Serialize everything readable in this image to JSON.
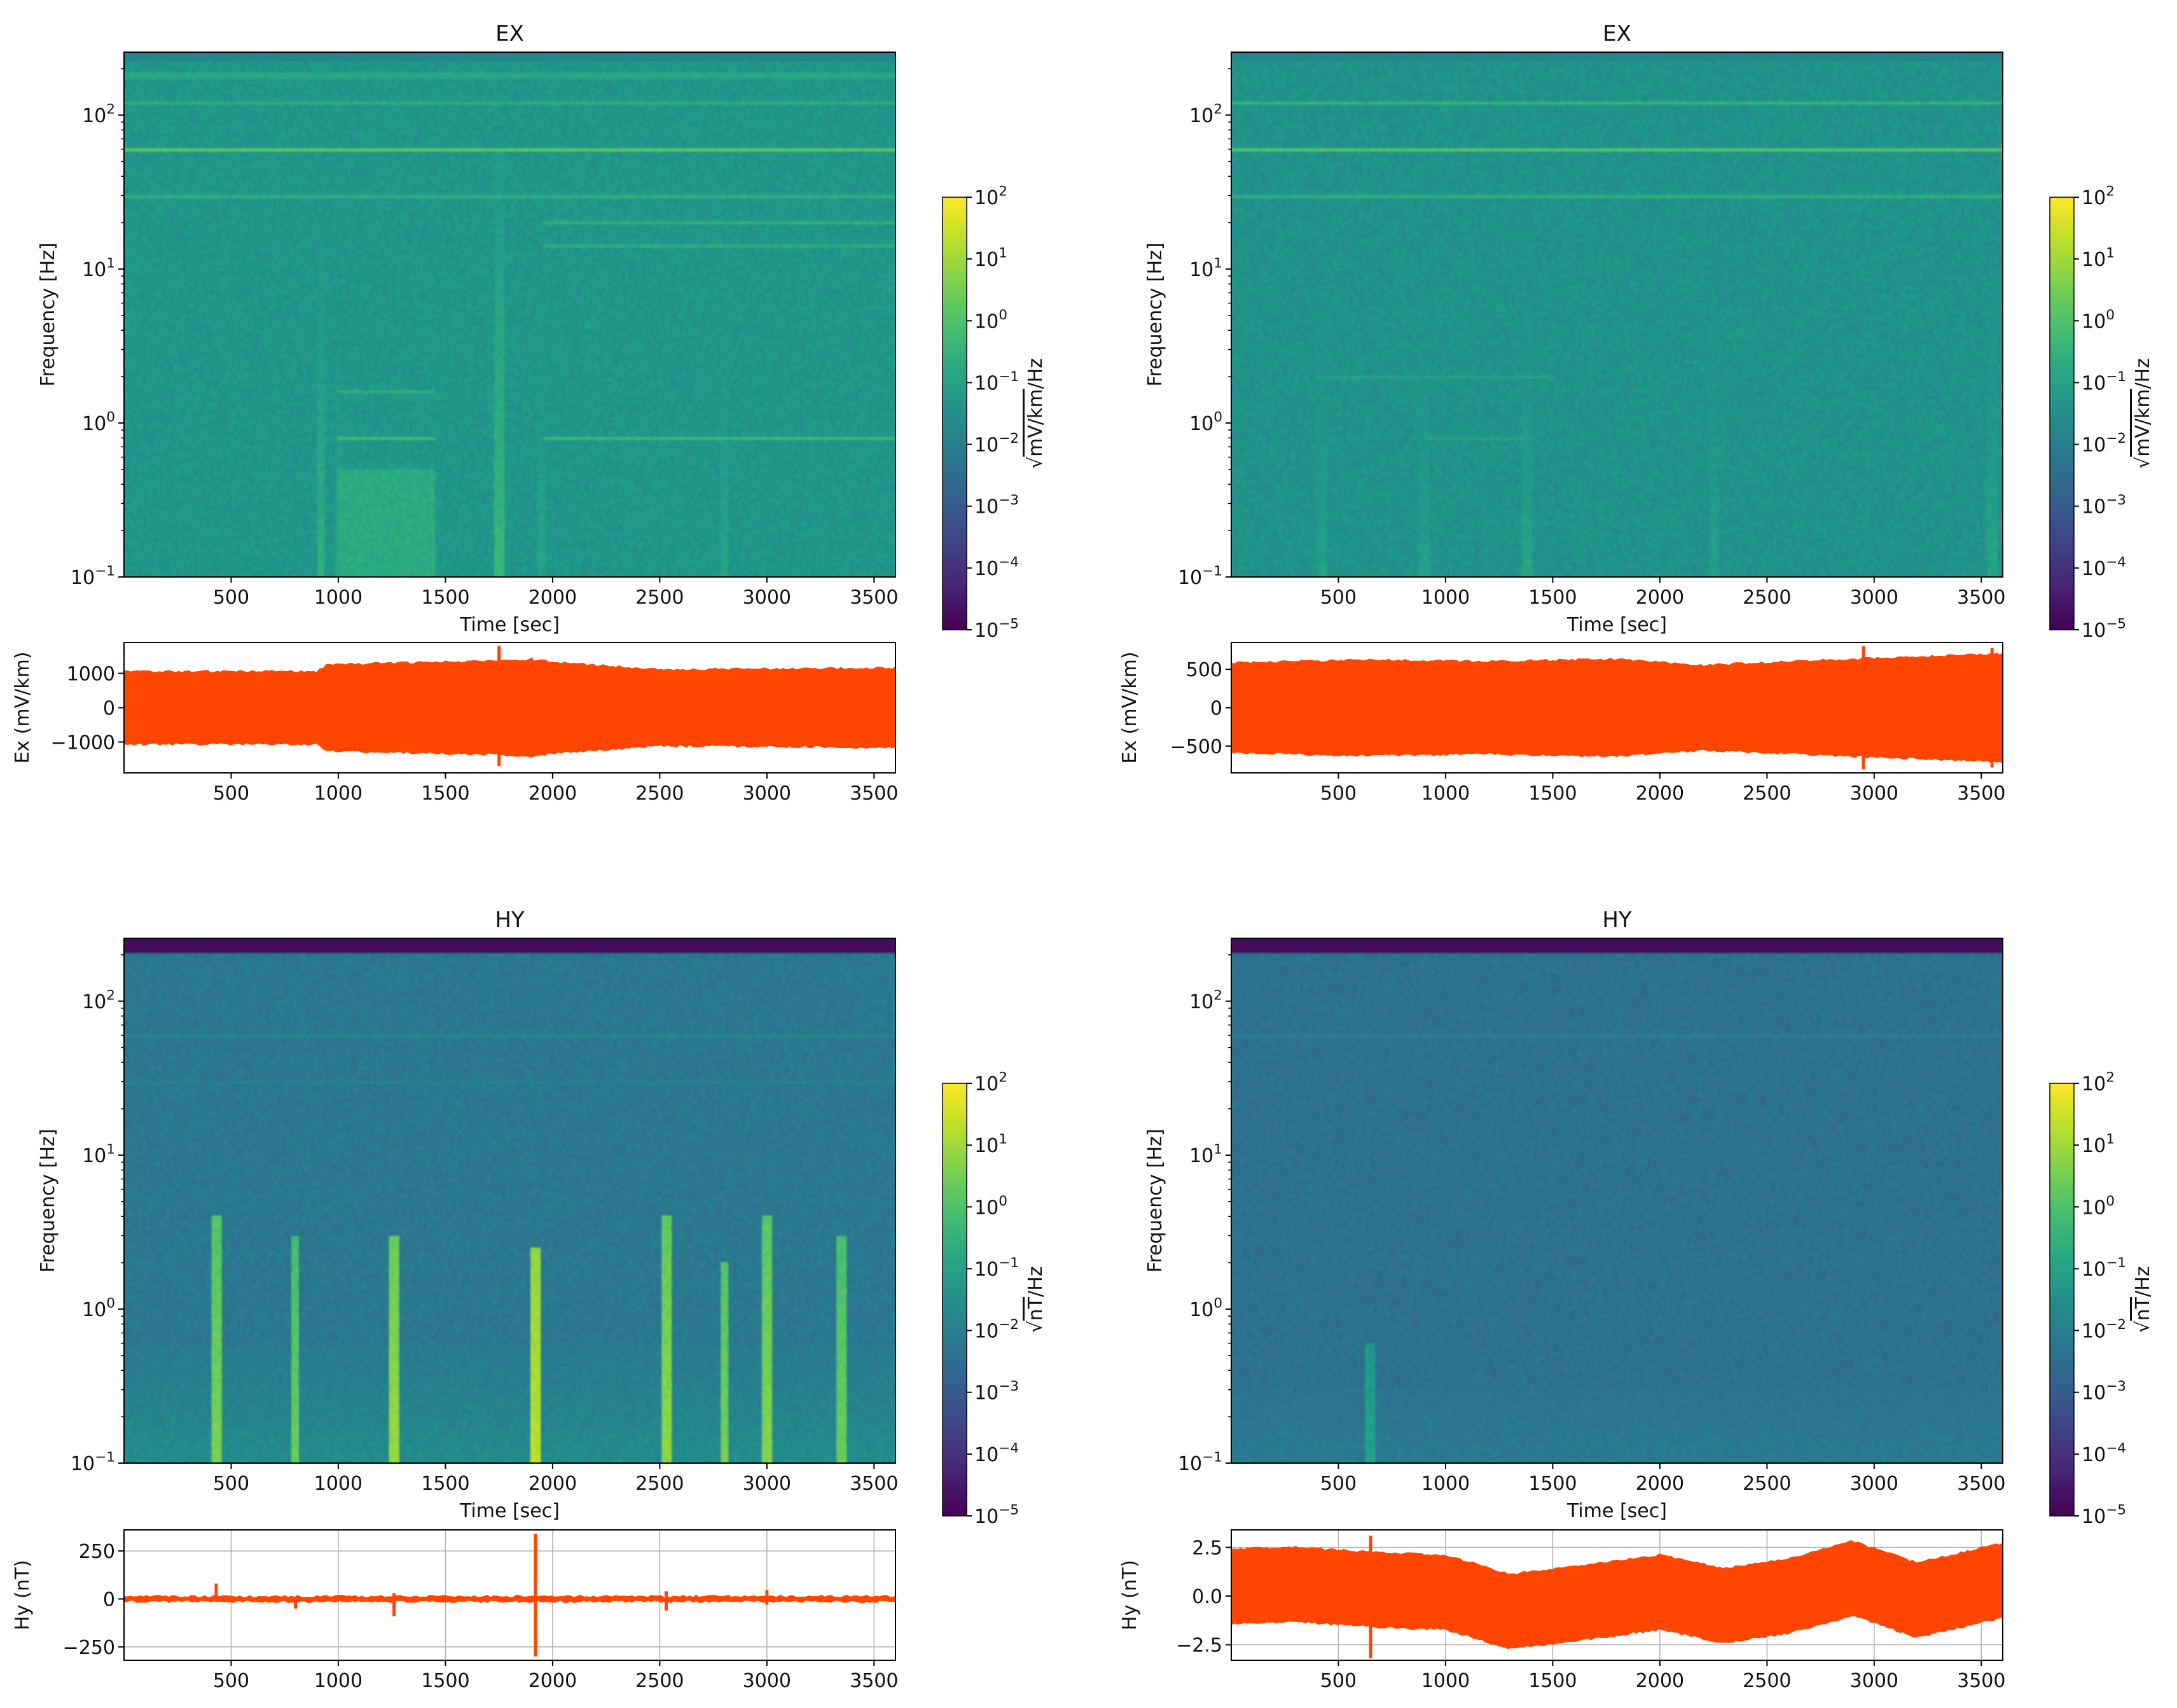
{
  "chart_data": [
    {
      "type": "heatmap",
      "title": "EX",
      "xlabel": "Time [sec]",
      "ylabel": "Frequency [Hz]",
      "xlim": [
        0,
        3600
      ],
      "ylim": [
        0.1,
        256
      ],
      "yscale": "log",
      "x_ticks": [
        "500",
        "1000",
        "1500",
        "2000",
        "2500",
        "3000",
        "3500"
      ],
      "x_tick_values": [
        500,
        1000,
        1500,
        2000,
        2500,
        3000,
        3500
      ],
      "y_ticks": [
        {
          "base": "10",
          "exp": "−1",
          "value": 0.1
        },
        {
          "base": "10",
          "exp": "0",
          "value": 1
        },
        {
          "base": "10",
          "exp": "1",
          "value": 10
        },
        {
          "base": "10",
          "exp": "2",
          "value": 100
        }
      ],
      "colorbar": {
        "label": "√mV/km/Hz",
        "radical": "√",
        "unit": "mV/km",
        "suffix": "/Hz",
        "scale": "log",
        "min_exp": -5,
        "max_exp": 2,
        "ticks": [
          {
            "base": "10",
            "exp": "−5"
          },
          {
            "base": "10",
            "exp": "−4"
          },
          {
            "base": "10",
            "exp": "−3"
          },
          {
            "base": "10",
            "exp": "−2"
          },
          {
            "base": "10",
            "exp": "−1"
          },
          {
            "base": "10",
            "exp": "0"
          },
          {
            "base": "10",
            "exp": "1"
          },
          {
            "base": "10",
            "exp": "2"
          }
        ]
      },
      "background_log10": -1.3,
      "top_band": {
        "from_hz": 225,
        "log10": -1.8
      },
      "horizontal_lines": [
        {
          "hz": 60,
          "log10": 0.35
        },
        {
          "hz": 120,
          "log10": -0.6
        },
        {
          "hz": 30,
          "log10": -0.5
        },
        {
          "hz": 180,
          "log10": -0.8
        },
        {
          "hz": 0.8,
          "log10": -0.2,
          "x0": 1000,
          "x1": 1450
        },
        {
          "hz": 0.8,
          "log10": -0.3,
          "x0": 1950,
          "x1": 3600
        },
        {
          "hz": 1.6,
          "log10": -0.5,
          "x0": 1000,
          "x1": 1450
        },
        {
          "hz": 20,
          "log10": -0.5,
          "x0": 1950,
          "x1": 3600
        },
        {
          "hz": 14,
          "log10": -0.6,
          "x0": 1950,
          "x1": 3600
        }
      ],
      "vertical_bursts": [
        {
          "t": 920,
          "log10": -0.6,
          "fmax": 20
        },
        {
          "t": 1000,
          "log10": -0.9,
          "fmax": 5
        },
        {
          "t": 1750,
          "log10": -0.3,
          "fmax": 60
        },
        {
          "t": 1950,
          "log10": -0.9,
          "fmax": 10
        },
        {
          "t": 2800,
          "log10": -0.9,
          "fmax": 20
        }
      ],
      "lowfreq_boost": {
        "x0": 1000,
        "x1": 1450,
        "log10": -0.7
      },
      "trace": {
        "ylabel": "Ex (mV/km)",
        "ylim": [
          -1900,
          1900
        ],
        "y_ticks": [
          {
            "label": "−1000",
            "value": -1000
          },
          {
            "label": "0",
            "value": 0
          },
          {
            "label": "1000",
            "value": 1000
          }
        ],
        "x_ticks": [
          "500",
          "1000",
          "1500",
          "2000",
          "2500",
          "3000",
          "3500"
        ],
        "grid": false,
        "envelope": [
          [
            0,
            1050
          ],
          [
            900,
            1050
          ],
          [
            950,
            1250
          ],
          [
            1700,
            1350
          ],
          [
            1900,
            1400
          ],
          [
            2050,
            1300
          ],
          [
            2500,
            1100
          ],
          [
            3600,
            1150
          ]
        ],
        "spikes": [
          {
            "t": 1750,
            "top": 1800,
            "bottom": -1700
          },
          {
            "t": 1900,
            "top": 1450,
            "bottom": -1450
          }
        ]
      }
    },
    {
      "type": "heatmap",
      "title": "EX",
      "xlabel": "Time [sec]",
      "ylabel": "Frequency [Hz]",
      "xlim": [
        0,
        3600
      ],
      "ylim": [
        0.1,
        256
      ],
      "yscale": "log",
      "x_ticks": [
        "500",
        "1000",
        "1500",
        "2000",
        "2500",
        "3000",
        "3500"
      ],
      "x_tick_values": [
        500,
        1000,
        1500,
        2000,
        2500,
        3000,
        3500
      ],
      "y_ticks": [
        {
          "base": "10",
          "exp": "−1",
          "value": 0.1
        },
        {
          "base": "10",
          "exp": "0",
          "value": 1
        },
        {
          "base": "10",
          "exp": "1",
          "value": 10
        },
        {
          "base": "10",
          "exp": "2",
          "value": 100
        }
      ],
      "colorbar": {
        "label": "√mV/km/Hz",
        "radical": "√",
        "unit": "mV/km",
        "suffix": "/Hz",
        "scale": "log",
        "min_exp": -5,
        "max_exp": 2,
        "ticks": [
          {
            "base": "10",
            "exp": "−5"
          },
          {
            "base": "10",
            "exp": "−4"
          },
          {
            "base": "10",
            "exp": "−3"
          },
          {
            "base": "10",
            "exp": "−2"
          },
          {
            "base": "10",
            "exp": "−1"
          },
          {
            "base": "10",
            "exp": "0"
          },
          {
            "base": "10",
            "exp": "1"
          },
          {
            "base": "10",
            "exp": "2"
          }
        ]
      },
      "background_log10": -1.4,
      "top_band": {
        "from_hz": 225,
        "log10": -1.8
      },
      "horizontal_lines": [
        {
          "hz": 60,
          "log10": 0.2
        },
        {
          "hz": 120,
          "log10": -0.4
        },
        {
          "hz": 30,
          "log10": -0.5
        },
        {
          "hz": 2,
          "log10": -0.9,
          "x0": 400,
          "x1": 1500
        },
        {
          "hz": 0.8,
          "log10": -0.9,
          "x0": 900,
          "x1": 1400
        }
      ],
      "vertical_bursts": [
        {
          "t": 420,
          "log10": -1.0,
          "fmax": 20
        },
        {
          "t": 900,
          "log10": -1.0,
          "fmax": 20
        },
        {
          "t": 1380,
          "log10": -0.9,
          "fmax": 20
        },
        {
          "t": 2250,
          "log10": -1.0,
          "fmax": 20
        },
        {
          "t": 3550,
          "log10": -0.9,
          "fmax": 20
        }
      ],
      "lowfreq_boost": null,
      "trace": {
        "ylabel": "Ex (mV/km)",
        "ylim": [
          -850,
          850
        ],
        "y_ticks": [
          {
            "label": "−500",
            "value": -500
          },
          {
            "label": "0",
            "value": 0
          },
          {
            "label": "500",
            "value": 500
          }
        ],
        "x_ticks": [
          "500",
          "1000",
          "1500",
          "2000",
          "2500",
          "3000",
          "3500"
        ],
        "grid": false,
        "envelope": [
          [
            0,
            580
          ],
          [
            600,
            620
          ],
          [
            1200,
            600
          ],
          [
            1800,
            630
          ],
          [
            2200,
            550
          ],
          [
            2800,
            620
          ],
          [
            3600,
            700
          ]
        ],
        "spikes": [
          {
            "t": 2950,
            "top": 800,
            "bottom": -800
          },
          {
            "t": 3550,
            "top": 780,
            "bottom": -780
          }
        ]
      }
    },
    {
      "type": "heatmap",
      "title": "HY",
      "xlabel": "Time [sec]",
      "ylabel": "Frequency [Hz]",
      "xlim": [
        0,
        3600
      ],
      "ylim": [
        0.1,
        256
      ],
      "yscale": "log",
      "x_ticks": [
        "500",
        "1000",
        "1500",
        "2000",
        "2500",
        "3000",
        "3500"
      ],
      "x_tick_values": [
        500,
        1000,
        1500,
        2000,
        2500,
        3000,
        3500
      ],
      "y_ticks": [
        {
          "base": "10",
          "exp": "−1",
          "value": 0.1
        },
        {
          "base": "10",
          "exp": "0",
          "value": 1
        },
        {
          "base": "10",
          "exp": "1",
          "value": 10
        },
        {
          "base": "10",
          "exp": "2",
          "value": 100
        }
      ],
      "colorbar": {
        "label": "√nT/Hz",
        "radical": "√",
        "unit": "nT",
        "suffix": "/Hz",
        "scale": "log",
        "min_exp": -5,
        "max_exp": 2,
        "ticks": [
          {
            "base": "10",
            "exp": "−5"
          },
          {
            "base": "10",
            "exp": "−4"
          },
          {
            "base": "10",
            "exp": "−3"
          },
          {
            "base": "10",
            "exp": "−2"
          },
          {
            "base": "10",
            "exp": "−1"
          },
          {
            "base": "10",
            "exp": "0"
          },
          {
            "base": "10",
            "exp": "1"
          },
          {
            "base": "10",
            "exp": "2"
          }
        ]
      },
      "background_log10": -2.2,
      "top_band": {
        "from_hz": 210,
        "log10": -4.8
      },
      "horizontal_lines": [
        {
          "hz": 60,
          "log10": -1.7
        },
        {
          "hz": 30,
          "log10": -1.9
        }
      ],
      "lowfreq_rise": {
        "below_hz": 0.6,
        "log10": -1.4
      },
      "vertical_bursts": [
        {
          "t": 430,
          "log10": 0.6,
          "fmax": 4
        },
        {
          "t": 800,
          "log10": 0.4,
          "fmax": 3
        },
        {
          "t": 1260,
          "log10": 0.9,
          "fmax": 3
        },
        {
          "t": 1920,
          "log10": 1.3,
          "fmax": 2.5
        },
        {
          "t": 2530,
          "log10": 0.8,
          "fmax": 4
        },
        {
          "t": 2800,
          "log10": 0.5,
          "fmax": 2
        },
        {
          "t": 3000,
          "log10": 0.7,
          "fmax": 4
        },
        {
          "t": 3350,
          "log10": 0.4,
          "fmax": 3
        }
      ],
      "trace": {
        "ylabel": "Hy (nT)",
        "ylim": [
          -320,
          360
        ],
        "y_ticks": [
          {
            "label": "−250",
            "value": -250
          },
          {
            "label": "0",
            "value": 0
          },
          {
            "label": "250",
            "value": 250
          }
        ],
        "x_ticks": [
          "500",
          "1000",
          "1500",
          "2000",
          "2500",
          "3000",
          "3500"
        ],
        "grid": true,
        "envelope": [
          [
            0,
            12
          ],
          [
            3600,
            12
          ]
        ],
        "spikes": [
          {
            "t": 430,
            "top": 80,
            "bottom": -15
          },
          {
            "t": 800,
            "top": 10,
            "bottom": -50
          },
          {
            "t": 1260,
            "top": 30,
            "bottom": -90
          },
          {
            "t": 1920,
            "top": 340,
            "bottom": -300
          },
          {
            "t": 2530,
            "top": 40,
            "bottom": -60
          },
          {
            "t": 3000,
            "top": 45,
            "bottom": -30
          }
        ]
      }
    },
    {
      "type": "heatmap",
      "title": "HY",
      "xlabel": "Time [sec]",
      "ylabel": "Frequency [Hz]",
      "xlim": [
        0,
        3600
      ],
      "ylim": [
        0.1,
        256
      ],
      "yscale": "log",
      "x_ticks": [
        "500",
        "1000",
        "1500",
        "2000",
        "2500",
        "3000",
        "3500"
      ],
      "x_tick_values": [
        500,
        1000,
        1500,
        2000,
        2500,
        3000,
        3500
      ],
      "y_ticks": [
        {
          "base": "10",
          "exp": "−1",
          "value": 0.1
        },
        {
          "base": "10",
          "exp": "0",
          "value": 1
        },
        {
          "base": "10",
          "exp": "1",
          "value": 10
        },
        {
          "base": "10",
          "exp": "2",
          "value": 100
        }
      ],
      "colorbar": {
        "label": "√nT/Hz",
        "radical": "√",
        "unit": "nT",
        "suffix": "/Hz",
        "scale": "log",
        "min_exp": -5,
        "max_exp": 2,
        "ticks": [
          {
            "base": "10",
            "exp": "−5"
          },
          {
            "base": "10",
            "exp": "−4"
          },
          {
            "base": "10",
            "exp": "−3"
          },
          {
            "base": "10",
            "exp": "−2"
          },
          {
            "base": "10",
            "exp": "−1"
          },
          {
            "base": "10",
            "exp": "0"
          },
          {
            "base": "10",
            "exp": "1"
          },
          {
            "base": "10",
            "exp": "2"
          }
        ]
      },
      "background_log10": -2.4,
      "top_band": {
        "from_hz": 210,
        "log10": -4.8
      },
      "horizontal_lines": [
        {
          "hz": 60,
          "log10": -1.9
        }
      ],
      "lowfreq_rise": {
        "below_hz": 0.3,
        "log10": -1.8
      },
      "vertical_bursts": [
        {
          "t": 650,
          "log10": -1.0,
          "fmax": 0.6
        }
      ],
      "trace": {
        "ylabel": "Hy (nT)",
        "ylim": [
          -3.3,
          3.4
        ],
        "y_ticks": [
          {
            "label": "−2.5",
            "value": -2.5
          },
          {
            "label": "0.0",
            "value": 0
          },
          {
            "label": "2.5",
            "value": 2.5
          }
        ],
        "x_ticks": [
          "500",
          "1000",
          "1500",
          "2000",
          "2500",
          "3000",
          "3500"
        ],
        "grid": true,
        "band": [
          [
            0,
            0.5
          ],
          [
            300,
            0.6
          ],
          [
            700,
            0.3
          ],
          [
            1000,
            0.2
          ],
          [
            1300,
            -0.8
          ],
          [
            1600,
            -0.4
          ],
          [
            2000,
            0.2
          ],
          [
            2300,
            -0.5
          ],
          [
            2600,
            0.0
          ],
          [
            2900,
            0.9
          ],
          [
            3200,
            -0.2
          ],
          [
            3600,
            0.8
          ]
        ],
        "halfwidth": 1.9,
        "spikes": [
          {
            "t": 650,
            "top": 3.1,
            "bottom": -3.2
          }
        ]
      }
    }
  ]
}
